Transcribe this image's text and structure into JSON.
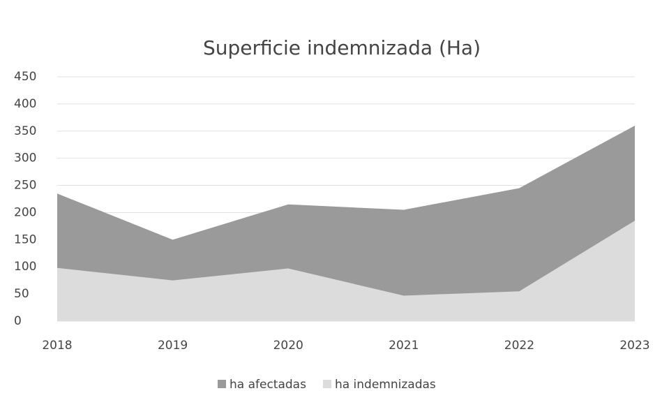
{
  "chart_data": {
    "type": "area",
    "title": "Superficie indemnizada (Ha)",
    "categories": [
      "2018",
      "2019",
      "2020",
      "2021",
      "2022",
      "2023"
    ],
    "series": [
      {
        "name": "ha afectadas",
        "color": "#9a9a9a",
        "values": [
          235,
          150,
          215,
          205,
          245,
          360
        ]
      },
      {
        "name": "ha indemnizadas",
        "color": "#dcdcdc",
        "values": [
          98,
          75,
          97,
          47,
          55,
          185
        ]
      }
    ],
    "ylim": [
      0,
      450
    ],
    "yticks": [
      0,
      50,
      100,
      150,
      200,
      250,
      300,
      350,
      400,
      450
    ],
    "grid": true
  }
}
